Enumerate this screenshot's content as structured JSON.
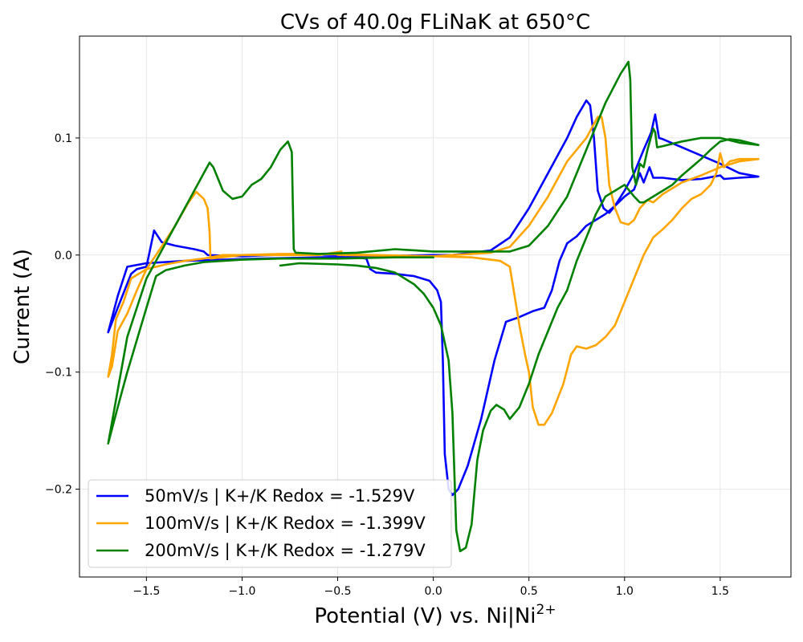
{
  "chart_data": {
    "type": "line",
    "title": "CVs of 40.0g FLiNaK at 650°C",
    "xlabel": "Potential (V) vs. Ni|Ni",
    "xlabel_superscript": "2+",
    "ylabel": "Current (A)",
    "xlim": [
      -1.85,
      1.87
    ],
    "ylim": [
      -0.275,
      0.187
    ],
    "x_ticks": [
      -1.5,
      -1.0,
      -0.5,
      0.0,
      0.5,
      1.0,
      1.5
    ],
    "x_tick_labels": [
      "−1.5",
      "−1.0",
      "−0.5",
      "0.0",
      "0.5",
      "1.0",
      "1.5"
    ],
    "y_ticks": [
      -0.2,
      -0.1,
      0.0,
      0.1
    ],
    "y_tick_labels": [
      "−0.2",
      "−0.1",
      "0.0",
      "0.1"
    ],
    "grid": true,
    "legend_position": "lower-left",
    "series": [
      {
        "name": "50mV/s | K+/K Redox = -1.529V",
        "color": "#0000ff",
        "points": [
          [
            0.0,
            0.0
          ],
          [
            -0.3,
            -0.001
          ],
          [
            -0.6,
            -0.002
          ],
          [
            -0.9,
            -0.003
          ],
          [
            -1.1,
            -0.004
          ],
          [
            -1.3,
            -0.005
          ],
          [
            -1.5,
            -0.007
          ],
          [
            -1.6,
            -0.01
          ],
          [
            -1.65,
            -0.035
          ],
          [
            -1.7,
            -0.066
          ],
          [
            -1.65,
            -0.045
          ],
          [
            -1.58,
            -0.016
          ],
          [
            -1.55,
            -0.012
          ],
          [
            -1.5,
            -0.01
          ],
          [
            -1.46,
            0.021
          ],
          [
            -1.42,
            0.011
          ],
          [
            -1.35,
            0.008
          ],
          [
            -1.25,
            0.005
          ],
          [
            -1.2,
            0.003
          ],
          [
            -1.18,
            0.0
          ],
          [
            -1.0,
            -0.001
          ],
          [
            -0.7,
            0.001
          ],
          [
            -0.5,
            0.0
          ],
          [
            -0.4,
            -0.002
          ],
          [
            -0.35,
            -0.003
          ],
          [
            -0.33,
            -0.012
          ],
          [
            -0.3,
            -0.015
          ],
          [
            -0.2,
            -0.016
          ],
          [
            -0.1,
            -0.018
          ],
          [
            -0.02,
            -0.022
          ],
          [
            0.02,
            -0.03
          ],
          [
            0.04,
            -0.04
          ],
          [
            0.05,
            -0.09
          ],
          [
            0.06,
            -0.17
          ],
          [
            0.08,
            -0.2
          ],
          [
            0.1,
            -0.205
          ],
          [
            0.13,
            -0.2
          ],
          [
            0.18,
            -0.18
          ],
          [
            0.25,
            -0.14
          ],
          [
            0.32,
            -0.09
          ],
          [
            0.38,
            -0.057
          ],
          [
            0.45,
            -0.053
          ],
          [
            0.52,
            -0.048
          ],
          [
            0.58,
            -0.045
          ],
          [
            0.62,
            -0.03
          ],
          [
            0.66,
            -0.005
          ],
          [
            0.7,
            0.01
          ],
          [
            0.75,
            0.016
          ],
          [
            0.8,
            0.025
          ],
          [
            0.85,
            0.03
          ],
          [
            0.9,
            0.035
          ],
          [
            0.95,
            0.042
          ],
          [
            1.0,
            0.05
          ],
          [
            1.05,
            0.056
          ],
          [
            1.08,
            0.07
          ],
          [
            1.1,
            0.062
          ],
          [
            1.13,
            0.075
          ],
          [
            1.15,
            0.066
          ],
          [
            1.2,
            0.066
          ],
          [
            1.3,
            0.064
          ],
          [
            1.4,
            0.065
          ],
          [
            1.5,
            0.068
          ],
          [
            1.52,
            0.065
          ],
          [
            1.6,
            0.066
          ],
          [
            1.7,
            0.067
          ],
          [
            1.6,
            0.07
          ],
          [
            1.5,
            0.078
          ],
          [
            1.4,
            0.085
          ],
          [
            1.3,
            0.092
          ],
          [
            1.2,
            0.099
          ],
          [
            1.18,
            0.1
          ],
          [
            1.16,
            0.12
          ],
          [
            1.14,
            0.105
          ],
          [
            1.1,
            0.09
          ],
          [
            1.05,
            0.07
          ],
          [
            1.0,
            0.055
          ],
          [
            0.95,
            0.042
          ],
          [
            0.92,
            0.036
          ],
          [
            0.89,
            0.04
          ],
          [
            0.86,
            0.055
          ],
          [
            0.84,
            0.1
          ],
          [
            0.82,
            0.128
          ],
          [
            0.8,
            0.132
          ],
          [
            0.75,
            0.118
          ],
          [
            0.7,
            0.1
          ],
          [
            0.6,
            0.07
          ],
          [
            0.5,
            0.04
          ],
          [
            0.4,
            0.015
          ],
          [
            0.3,
            0.004
          ],
          [
            0.2,
            0.002
          ],
          [
            0.1,
            0.0
          ],
          [
            0.0,
            0.0
          ]
        ]
      },
      {
        "name": "100mV/s | K+/K Redox = -1.399V",
        "color": "#ffa500",
        "points": [
          [
            0.0,
            -0.001
          ],
          [
            -0.5,
            0.0
          ],
          [
            -0.48,
            0.003
          ],
          [
            -0.6,
            0.0
          ],
          [
            -0.9,
            0.0
          ],
          [
            -1.1,
            0.0
          ],
          [
            -1.2,
            -0.003
          ],
          [
            -1.3,
            -0.005
          ],
          [
            -1.4,
            -0.008
          ],
          [
            -1.5,
            -0.012
          ],
          [
            -1.58,
            -0.02
          ],
          [
            -1.62,
            -0.04
          ],
          [
            -1.66,
            -0.055
          ],
          [
            -1.68,
            -0.085
          ],
          [
            -1.7,
            -0.104
          ],
          [
            -1.68,
            -0.095
          ],
          [
            -1.65,
            -0.065
          ],
          [
            -1.6,
            -0.05
          ],
          [
            -1.55,
            -0.03
          ],
          [
            -1.5,
            -0.012
          ],
          [
            -1.45,
            0.0
          ],
          [
            -1.35,
            0.025
          ],
          [
            -1.28,
            0.045
          ],
          [
            -1.24,
            0.054
          ],
          [
            -1.2,
            0.048
          ],
          [
            -1.18,
            0.04
          ],
          [
            -1.17,
            0.02
          ],
          [
            -1.165,
            -0.003
          ],
          [
            -1.0,
            0.0
          ],
          [
            -0.8,
            0.001
          ],
          [
            -0.6,
            0.001
          ],
          [
            -0.3,
            0.0
          ],
          [
            0.0,
            -0.001
          ],
          [
            0.2,
            -0.002
          ],
          [
            0.35,
            -0.005
          ],
          [
            0.4,
            -0.01
          ],
          [
            0.42,
            -0.03
          ],
          [
            0.45,
            -0.06
          ],
          [
            0.48,
            -0.085
          ],
          [
            0.5,
            -0.1
          ],
          [
            0.52,
            -0.13
          ],
          [
            0.55,
            -0.145
          ],
          [
            0.58,
            -0.145
          ],
          [
            0.62,
            -0.135
          ],
          [
            0.68,
            -0.11
          ],
          [
            0.72,
            -0.085
          ],
          [
            0.75,
            -0.078
          ],
          [
            0.8,
            -0.08
          ],
          [
            0.85,
            -0.077
          ],
          [
            0.9,
            -0.07
          ],
          [
            0.95,
            -0.06
          ],
          [
            1.0,
            -0.04
          ],
          [
            1.05,
            -0.02
          ],
          [
            1.1,
            0.0
          ],
          [
            1.15,
            0.015
          ],
          [
            1.2,
            0.022
          ],
          [
            1.25,
            0.03
          ],
          [
            1.3,
            0.04
          ],
          [
            1.35,
            0.048
          ],
          [
            1.4,
            0.052
          ],
          [
            1.45,
            0.06
          ],
          [
            1.48,
            0.07
          ],
          [
            1.5,
            0.087
          ],
          [
            1.52,
            0.075
          ],
          [
            1.55,
            0.08
          ],
          [
            1.6,
            0.082
          ],
          [
            1.7,
            0.082
          ],
          [
            1.6,
            0.08
          ],
          [
            1.5,
            0.075
          ],
          [
            1.4,
            0.068
          ],
          [
            1.3,
            0.062
          ],
          [
            1.2,
            0.052
          ],
          [
            1.15,
            0.045
          ],
          [
            1.12,
            0.047
          ],
          [
            1.08,
            0.04
          ],
          [
            1.05,
            0.03
          ],
          [
            1.02,
            0.026
          ],
          [
            0.98,
            0.028
          ],
          [
            0.95,
            0.04
          ],
          [
            0.92,
            0.06
          ],
          [
            0.9,
            0.1
          ],
          [
            0.88,
            0.118
          ],
          [
            0.86,
            0.118
          ],
          [
            0.8,
            0.1
          ],
          [
            0.7,
            0.08
          ],
          [
            0.6,
            0.05
          ],
          [
            0.5,
            0.025
          ],
          [
            0.4,
            0.007
          ],
          [
            0.3,
            0.002
          ],
          [
            0.1,
            0.0
          ],
          [
            0.0,
            -0.001
          ]
        ]
      },
      {
        "name": "200mV/s | K+/K Redox = -1.279V",
        "color": "#008000",
        "points": [
          [
            -0.8,
            -0.009
          ],
          [
            -0.7,
            -0.007
          ],
          [
            -0.5,
            -0.008
          ],
          [
            -0.4,
            -0.009
          ],
          [
            -0.3,
            -0.011
          ],
          [
            -0.2,
            -0.015
          ],
          [
            -0.1,
            -0.025
          ],
          [
            -0.05,
            -0.033
          ],
          [
            0.0,
            -0.045
          ],
          [
            0.04,
            -0.06
          ],
          [
            0.08,
            -0.09
          ],
          [
            0.1,
            -0.135
          ],
          [
            0.12,
            -0.235
          ],
          [
            0.14,
            -0.253
          ],
          [
            0.17,
            -0.25
          ],
          [
            0.2,
            -0.23
          ],
          [
            0.23,
            -0.175
          ],
          [
            0.26,
            -0.15
          ],
          [
            0.3,
            -0.133
          ],
          [
            0.33,
            -0.128
          ],
          [
            0.37,
            -0.132
          ],
          [
            0.4,
            -0.14
          ],
          [
            0.45,
            -0.13
          ],
          [
            0.5,
            -0.11
          ],
          [
            0.55,
            -0.085
          ],
          [
            0.6,
            -0.065
          ],
          [
            0.65,
            -0.045
          ],
          [
            0.7,
            -0.03
          ],
          [
            0.75,
            -0.005
          ],
          [
            0.8,
            0.015
          ],
          [
            0.85,
            0.035
          ],
          [
            0.9,
            0.05
          ],
          [
            0.95,
            0.055
          ],
          [
            1.0,
            0.06
          ],
          [
            1.05,
            0.05
          ],
          [
            1.08,
            0.045
          ],
          [
            1.1,
            0.045
          ],
          [
            1.15,
            0.05
          ],
          [
            1.2,
            0.055
          ],
          [
            1.25,
            0.06
          ],
          [
            1.3,
            0.068
          ],
          [
            1.35,
            0.075
          ],
          [
            1.4,
            0.082
          ],
          [
            1.45,
            0.09
          ],
          [
            1.5,
            0.097
          ],
          [
            1.55,
            0.099
          ],
          [
            1.6,
            0.098
          ],
          [
            1.65,
            0.096
          ],
          [
            1.7,
            0.094
          ],
          [
            1.6,
            0.096
          ],
          [
            1.5,
            0.1
          ],
          [
            1.4,
            0.1
          ],
          [
            1.3,
            0.097
          ],
          [
            1.2,
            0.093
          ],
          [
            1.17,
            0.092
          ],
          [
            1.16,
            0.105
          ],
          [
            1.15,
            0.108
          ],
          [
            1.12,
            0.09
          ],
          [
            1.1,
            0.075
          ],
          [
            1.08,
            0.078
          ],
          [
            1.06,
            0.06
          ],
          [
            1.04,
            0.075
          ],
          [
            1.03,
            0.15
          ],
          [
            1.02,
            0.165
          ],
          [
            0.98,
            0.155
          ],
          [
            0.9,
            0.13
          ],
          [
            0.8,
            0.09
          ],
          [
            0.7,
            0.05
          ],
          [
            0.6,
            0.025
          ],
          [
            0.5,
            0.008
          ],
          [
            0.4,
            0.003
          ],
          [
            0.2,
            0.003
          ],
          [
            0.0,
            0.003
          ],
          [
            -0.2,
            0.005
          ],
          [
            -0.4,
            0.002
          ],
          [
            -0.6,
            0.001
          ],
          [
            -0.72,
            0.002
          ],
          [
            -0.73,
            0.005
          ],
          [
            -0.74,
            0.088
          ],
          [
            -0.76,
            0.097
          ],
          [
            -0.8,
            0.09
          ],
          [
            -0.85,
            0.075
          ],
          [
            -0.9,
            0.065
          ],
          [
            -0.95,
            0.06
          ],
          [
            -1.0,
            0.05
          ],
          [
            -1.05,
            0.048
          ],
          [
            -1.1,
            0.055
          ],
          [
            -1.15,
            0.075
          ],
          [
            -1.17,
            0.079
          ],
          [
            -1.2,
            0.07
          ],
          [
            -1.3,
            0.04
          ],
          [
            -1.4,
            0.01
          ],
          [
            -1.5,
            -0.02
          ],
          [
            -1.6,
            -0.07
          ],
          [
            -1.7,
            -0.161
          ],
          [
            -1.65,
            -0.13
          ],
          [
            -1.6,
            -0.1
          ],
          [
            -1.5,
            -0.045
          ],
          [
            -1.45,
            -0.018
          ],
          [
            -1.4,
            -0.013
          ],
          [
            -1.3,
            -0.009
          ],
          [
            -1.2,
            -0.006
          ],
          [
            -1.0,
            -0.004
          ],
          [
            -0.8,
            -0.003
          ],
          [
            -0.5,
            -0.003
          ],
          [
            -0.2,
            -0.002
          ],
          [
            0.0,
            -0.002
          ]
        ]
      }
    ]
  }
}
